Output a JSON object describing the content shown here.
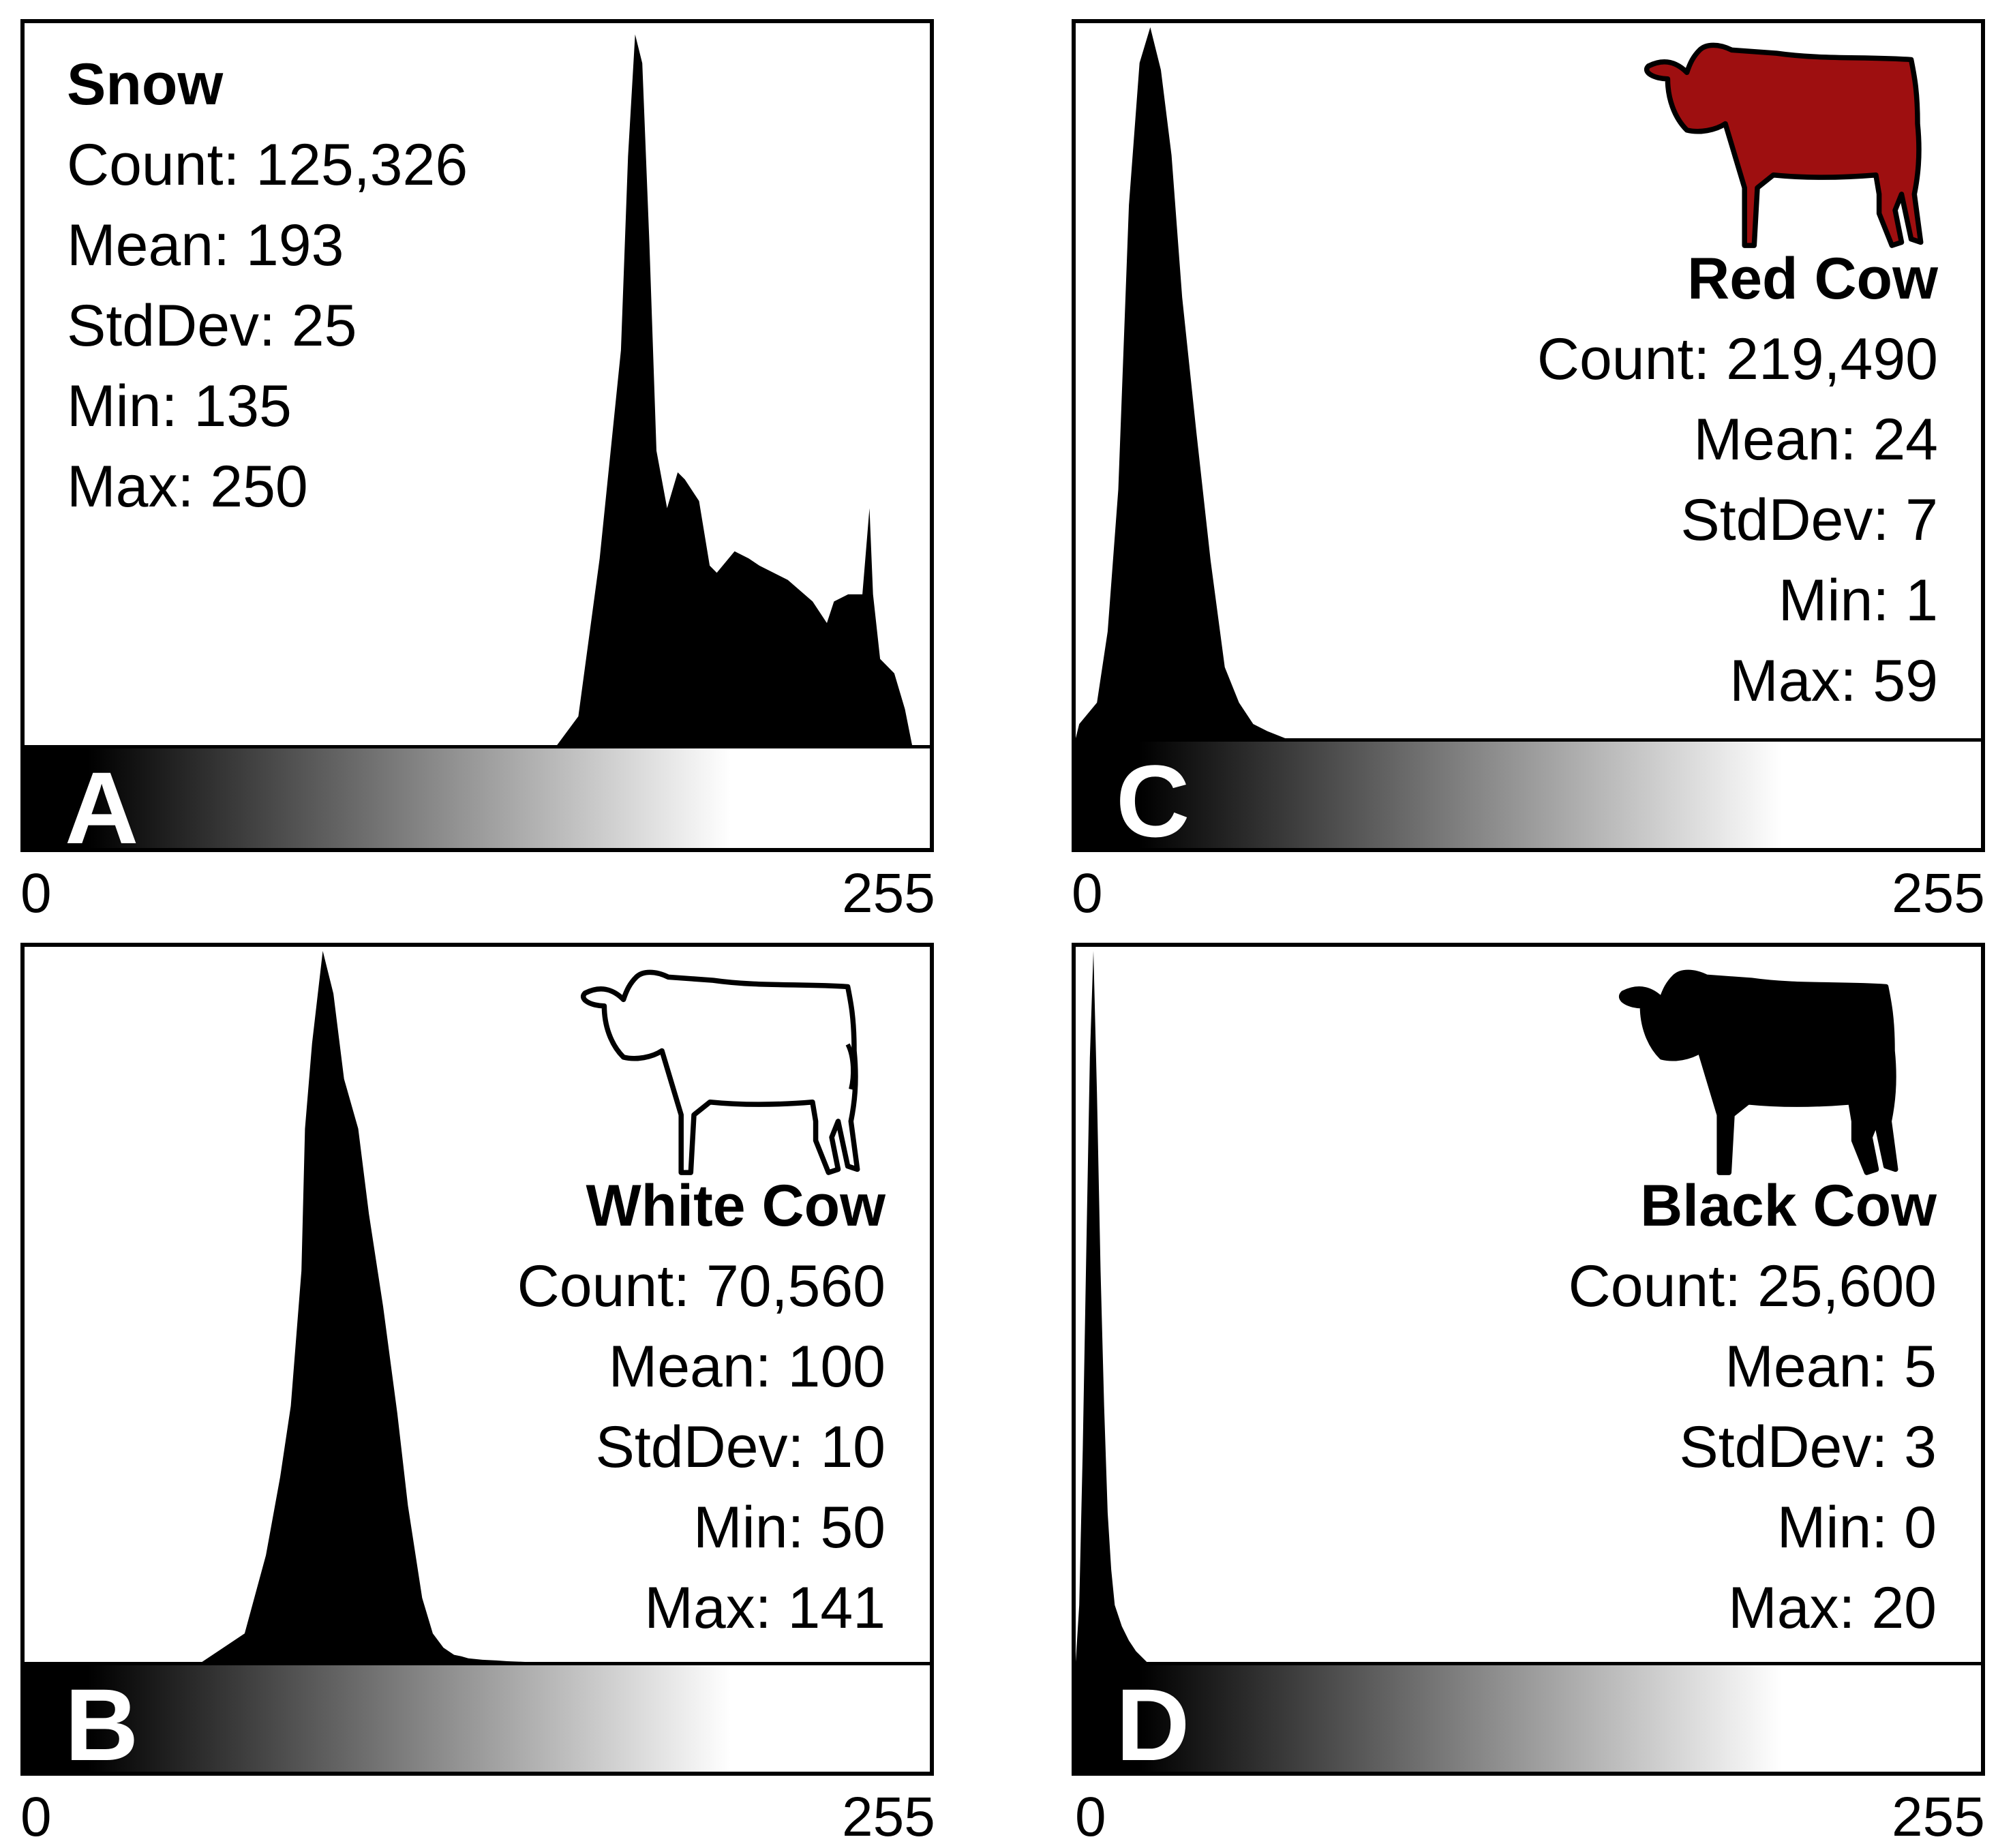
{
  "panels": [
    {
      "letter": "A",
      "name": "Snow",
      "stats": {
        "count": "Count: 125,326",
        "mean": "Mean: 193",
        "stddev": "StdDev: 25",
        "min": "Min: 135",
        "max": "Max: 250"
      },
      "icon": "none",
      "axis_min": "0",
      "axis_max": "255"
    },
    {
      "letter": "B",
      "name": "White Cow",
      "stats": {
        "count": "Count: 70,560",
        "mean": "Mean: 100",
        "stddev": "StdDev: 10",
        "min": "Min: 50",
        "max": "Max: 141"
      },
      "icon": "cow-outline-icon",
      "icon_color": "#ffffff",
      "axis_min": "0",
      "axis_max": "255"
    },
    {
      "letter": "C",
      "name": "Red Cow",
      "stats": {
        "count": "Count: 219,490",
        "mean": "Mean: 24",
        "stddev": "StdDev: 7",
        "min": "Min: 1",
        "max": "Max: 59"
      },
      "icon": "cow-silhouette-icon",
      "icon_color": "#9e0f10",
      "axis_min": "0",
      "axis_max": "255"
    },
    {
      "letter": "D",
      "name": "Black Cow",
      "stats": {
        "count": "Count: 25,600",
        "mean": "Mean: 5",
        "stddev": "StdDev: 3",
        "min": "Min: 0",
        "max": "Max: 20"
      },
      "icon": "cow-silhouette-icon",
      "icon_color": "#000000",
      "axis_min": "0",
      "axis_max": "255"
    }
  ],
  "chart_data": [
    {
      "type": "area",
      "title": "Snow",
      "xlim": [
        0,
        255
      ],
      "ylim": [
        0,
        1
      ],
      "x": [
        0,
        150,
        156,
        162,
        168,
        170,
        172,
        174,
        176,
        178,
        181,
        184,
        186,
        190,
        193,
        195,
        200,
        204,
        207,
        215,
        222,
        226,
        228,
        232,
        236,
        238,
        239,
        241,
        245,
        248,
        250,
        255
      ],
      "y": [
        0,
        0,
        0.04,
        0.26,
        0.55,
        0.82,
        0.99,
        0.95,
        0.7,
        0.41,
        0.33,
        0.38,
        0.37,
        0.34,
        0.25,
        0.24,
        0.27,
        0.26,
        0.25,
        0.23,
        0.2,
        0.17,
        0.2,
        0.21,
        0.21,
        0.33,
        0.21,
        0.12,
        0.1,
        0.05,
        0,
        0
      ]
    },
    {
      "type": "area",
      "title": "White Cow",
      "xlim": [
        0,
        255
      ],
      "ylim": [
        0,
        1
      ],
      "x": [
        0,
        50,
        62,
        68,
        72,
        75,
        78,
        79,
        81,
        84,
        87,
        90,
        94,
        97,
        101,
        105,
        108,
        112,
        115,
        118,
        121,
        123,
        125,
        129,
        133,
        136,
        141,
        255
      ],
      "y": [
        0,
        0,
        0.04,
        0.15,
        0.26,
        0.36,
        0.55,
        0.75,
        0.87,
        1.0,
        0.94,
        0.82,
        0.75,
        0.63,
        0.5,
        0.35,
        0.22,
        0.09,
        0.04,
        0.02,
        0.01,
        0.008,
        0.005,
        0.003,
        0.002,
        0.001,
        0,
        0
      ]
    },
    {
      "type": "area",
      "title": "Red Cow",
      "xlim": [
        0,
        255
      ],
      "ylim": [
        0,
        1
      ],
      "x": [
        0,
        1,
        6,
        9,
        12,
        15,
        18,
        21,
        24,
        27,
        30,
        34,
        38,
        42,
        46,
        50,
        54,
        59,
        255
      ],
      "y": [
        0,
        0.02,
        0.05,
        0.15,
        0.35,
        0.75,
        0.95,
        1.0,
        0.94,
        0.82,
        0.62,
        0.43,
        0.25,
        0.1,
        0.05,
        0.02,
        0.01,
        0,
        0
      ]
    },
    {
      "type": "area",
      "title": "Black Cow",
      "xlim": [
        0,
        255
      ],
      "ylim": [
        0,
        1
      ],
      "x": [
        0,
        1,
        2,
        3,
        4,
        5,
        6,
        7,
        8,
        9,
        10,
        11,
        13,
        15,
        17,
        20,
        255
      ],
      "y": [
        0,
        0.08,
        0.3,
        0.58,
        0.85,
        1.0,
        0.8,
        0.55,
        0.36,
        0.21,
        0.13,
        0.08,
        0.05,
        0.03,
        0.015,
        0,
        0
      ]
    }
  ]
}
